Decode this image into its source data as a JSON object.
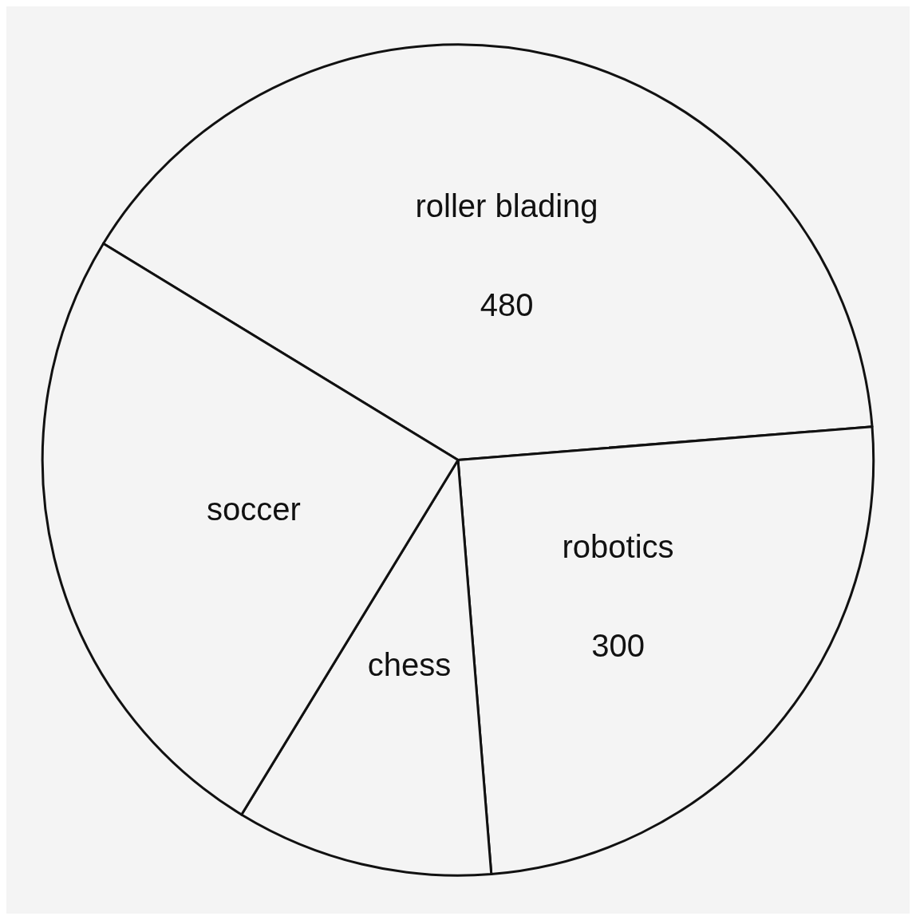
{
  "chart_data": {
    "type": "pie",
    "categories": [
      "roller blading",
      "robotics",
      "chess",
      "soccer"
    ],
    "values": [
      480,
      300,
      120,
      300
    ],
    "value_labels": [
      "480",
      "300",
      null,
      null
    ],
    "colors": [
      "#f4f4f4",
      "#f4f4f4",
      "#f4f4f4",
      "#f4f4f4"
    ],
    "legend": false
  }
}
